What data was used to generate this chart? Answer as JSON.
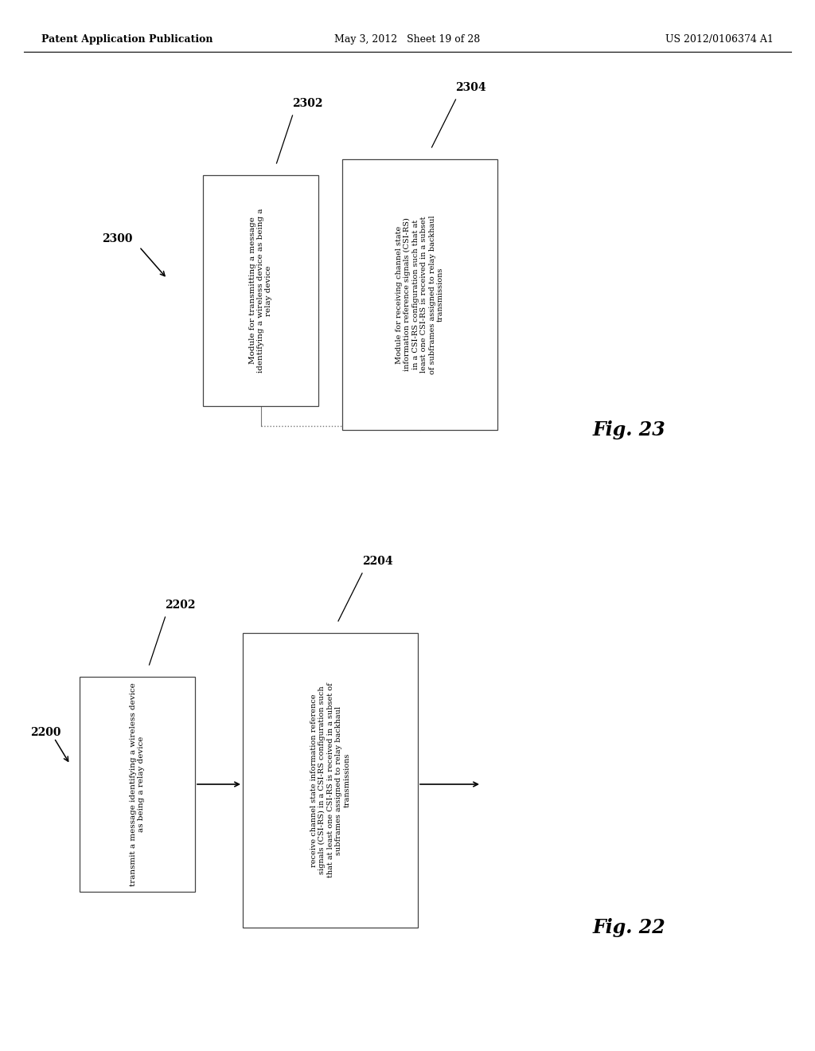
{
  "header_left": "Patent Application Publication",
  "header_mid": "May 3, 2012   Sheet 19 of 28",
  "header_right": "US 2012/0106374 A1",
  "bg_color": "#ffffff",
  "fig22_label": "2200",
  "fig22_fig_label": "Fig. 22",
  "fig22_box1_label": "2202",
  "fig22_box2_label": "2204",
  "fig22_box1_text": "transmit a message identifying a wireless device\nas being a relay device",
  "fig22_box2_text": "receive channel state information reference\nsignals (CSI-RS) in a CSI-RS configuration such\nthat at least one CSI-RS is received in a subset of\nsubframes assigned to relay backhaul\ntransmissions",
  "fig23_label": "2300",
  "fig23_fig_label": "Fig. 23",
  "fig23_box1_label": "2302",
  "fig23_box2_label": "2304",
  "fig23_box1_text": "Module for transmitting a message\nidentifying a wireless device as being a\nrelay device",
  "fig23_box2_text": "Module for receiving channel state\ninformation reference signals (CSI-RS)\nin a CSI-RS configuration such that at\nleast one CSI-RS is received in a subset\nof subframes assigned to relay backhaul\ntransmissions"
}
